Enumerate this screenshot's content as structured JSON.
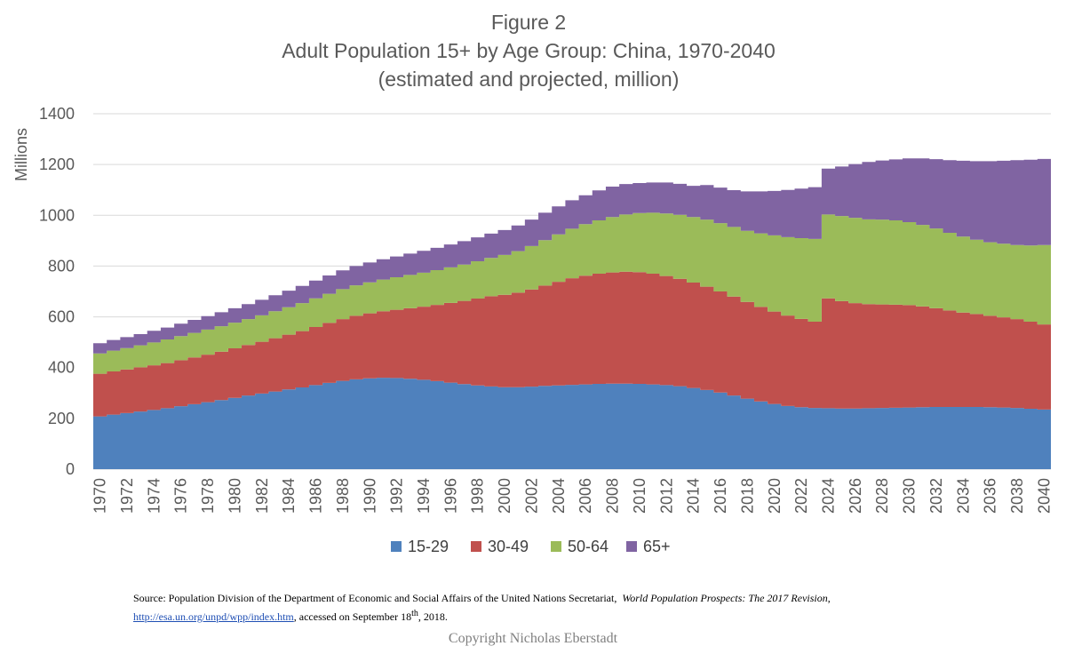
{
  "chart_data": {
    "type": "area",
    "stacked": true,
    "title": "Figure 2",
    "subtitle_lines": [
      "Adult Population 15+ by Age Group: China, 1970-2040",
      "(estimated and projected, million)"
    ],
    "xlabel": "",
    "ylabel": "Millions",
    "ylim": [
      0,
      1400
    ],
    "yticks": [
      0,
      200,
      400,
      600,
      800,
      1000,
      1200,
      1400
    ],
    "grid": true,
    "legend_position": "bottom",
    "x": [
      1970,
      1971,
      1972,
      1973,
      1974,
      1975,
      1976,
      1977,
      1978,
      1979,
      1980,
      1981,
      1982,
      1983,
      1984,
      1985,
      1986,
      1987,
      1988,
      1989,
      1990,
      1991,
      1992,
      1993,
      1994,
      1995,
      1996,
      1997,
      1998,
      1999,
      2000,
      2001,
      2002,
      2003,
      2004,
      2005,
      2006,
      2007,
      2008,
      2009,
      2010,
      2011,
      2012,
      2013,
      2014,
      2015,
      2016,
      2017,
      2018,
      2019,
      2020,
      2021,
      2022,
      2023,
      2024,
      2025,
      2026,
      2027,
      2028,
      2029,
      2030,
      2031,
      2032,
      2033,
      2034,
      2035,
      2036,
      2037,
      2038,
      2039,
      2040
    ],
    "xticks": [
      1970,
      1972,
      1974,
      1976,
      1978,
      1980,
      1982,
      1984,
      1986,
      1988,
      1990,
      1992,
      1994,
      1996,
      1998,
      2000,
      2002,
      2004,
      2006,
      2008,
      2010,
      2012,
      2014,
      2016,
      2018,
      2020,
      2022,
      2024,
      2026,
      2028,
      2030,
      2032,
      2034,
      2036,
      2038,
      2040
    ],
    "series": [
      {
        "name": "15-29",
        "color": "#4f81bd",
        "values": [
          208,
          215,
          221,
          227,
          233,
          240,
          248,
          256,
          264,
          272,
          281,
          290,
          298,
          306,
          314,
          322,
          331,
          340,
          348,
          354,
          358,
          360,
          359,
          356,
          352,
          347,
          341,
          335,
          330,
          326,
          323,
          323,
          325,
          328,
          330,
          332,
          334,
          336,
          337,
          337,
          336,
          334,
          331,
          327,
          320,
          312,
          302,
          290,
          278,
          267,
          257,
          249,
          244,
          241,
          240,
          239,
          239,
          240,
          241,
          242,
          243,
          244,
          245,
          245,
          245,
          245,
          244,
          243,
          241,
          238,
          235
        ]
      },
      {
        "name": "30-49",
        "color": "#c0504d",
        "values": [
          168,
          170,
          172,
          174,
          176,
          178,
          181,
          184,
          187,
          191,
          195,
          199,
          204,
          210,
          216,
          222,
          229,
          236,
          243,
          250,
          256,
          262,
          269,
          278,
          288,
          300,
          314,
          328,
          342,
          355,
          364,
          372,
          383,
          395,
          408,
          420,
          428,
          434,
          438,
          441,
          440,
          436,
          430,
          423,
          415,
          407,
          398,
          390,
          381,
          372,
          364,
          356,
          348,
          340,
          433,
          423,
          415,
          410,
          408,
          406,
          403,
          397,
          389,
          380,
          372,
          366,
          360,
          355,
          350,
          343,
          335
        ]
      },
      {
        "name": "50-64",
        "color": "#9bbb59",
        "values": [
          80,
          82,
          84,
          87,
          90,
          93,
          95,
          97,
          99,
          100,
          101,
          102,
          104,
          106,
          108,
          110,
          113,
          115,
          118,
          120,
          122,
          125,
          128,
          131,
          134,
          137,
          140,
          143,
          147,
          151,
          157,
          164,
          171,
          179,
          187,
          195,
          203,
          210,
          218,
          225,
          233,
          240,
          246,
          252,
          258,
          264,
          269,
          274,
          280,
          290,
          300,
          309,
          318,
          326,
          330,
          335,
          336,
          334,
          334,
          332,
          327,
          321,
          314,
          306,
          299,
          293,
          290,
          290,
          292,
          300,
          313
        ]
      },
      {
        "name": "65+",
        "color": "#8064a2",
        "values": [
          40,
          42,
          43,
          44,
          46,
          47,
          49,
          51,
          53,
          55,
          57,
          59,
          61,
          63,
          65,
          68,
          70,
          72,
          74,
          76,
          78,
          80,
          82,
          84,
          86,
          88,
          90,
          92,
          94,
          96,
          98,
          101,
          104,
          108,
          110,
          112,
          114,
          118,
          120,
          120,
          118,
          119,
          122,
          122,
          123,
          136,
          140,
          145,
          155,
          165,
          175,
          186,
          195,
          204,
          181,
          195,
          212,
          226,
          233,
          240,
          251,
          262,
          273,
          286,
          299,
          309,
          319,
          327,
          334,
          338,
          339
        ]
      }
    ]
  },
  "source": {
    "prefix": "Source: Population Division of the Department of Economic and Social Affairs of the United Nations Secretariat,",
    "publication": "World Population Prospects: The 2017 Revision",
    "after_publication": ",",
    "link": "http://esa.un.org/unpd/wpp/index.htm",
    "accessed_prefix": ", accessed on September 18",
    "accessed_sup": "th",
    "accessed_suffix": ", 2018."
  },
  "copyright": "Copyright Nicholas Eberstadt"
}
